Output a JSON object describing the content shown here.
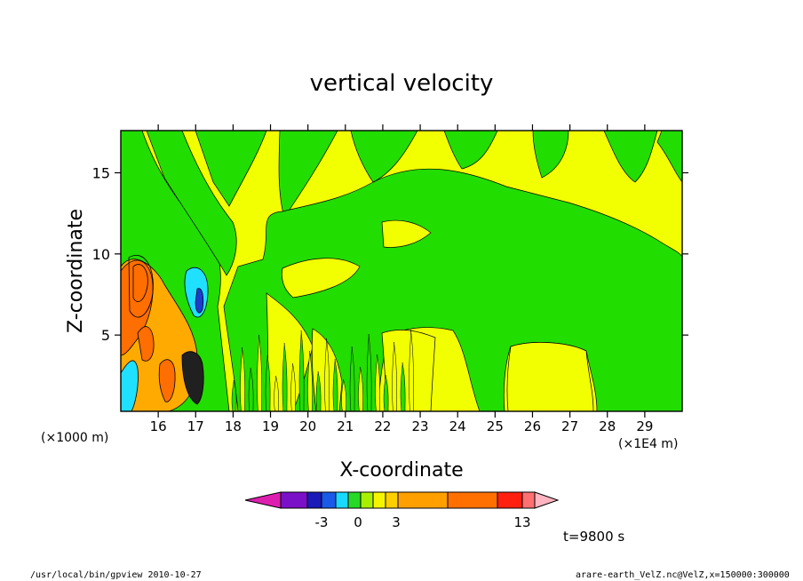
{
  "chart_data": {
    "type": "heatmap",
    "title": "vertical velocity",
    "xlabel": "X-coordinate",
    "ylabel": "Z-coordinate",
    "x_unit_left": "(×1000 m)",
    "x_unit_right": "(×1E4 m)",
    "x_ticks": [
      "16",
      "17",
      "18",
      "19",
      "20",
      "21",
      "22",
      "23",
      "24",
      "25",
      "26",
      "27",
      "28",
      "29"
    ],
    "y_ticks": [
      "5",
      "10",
      "15"
    ],
    "xlim": [
      15.0,
      30.0
    ],
    "ylim": [
      0.3,
      17.6
    ],
    "time_label": "t=9800 s",
    "colorbar": {
      "labels": [
        "-3",
        "0",
        "3",
        "13"
      ],
      "colors": [
        "#dd1fb0",
        "#7a10c8",
        "#1a1ab8",
        "#1a5ae8",
        "#19d9ff",
        "#26d926",
        "#a8f000",
        "#f5f500",
        "#ffd000",
        "#ffa000",
        "#ff7000",
        "#ff2010",
        "#ff7070",
        "#ffb4c0"
      ]
    },
    "fill_colors": {
      "background": "#f2ff00",
      "low_positive": "#22dd00",
      "orange": "#ff6e00",
      "light_orange": "#ffaa00",
      "cyan": "#20e0ff",
      "blue": "#1a3cd0",
      "dark": "#202020"
    }
  },
  "footer": {
    "left": "/usr/local/bin/gpview  2010-10-27",
    "right": "arare-earth_VelZ.nc@VelZ,x=150000:300000"
  }
}
